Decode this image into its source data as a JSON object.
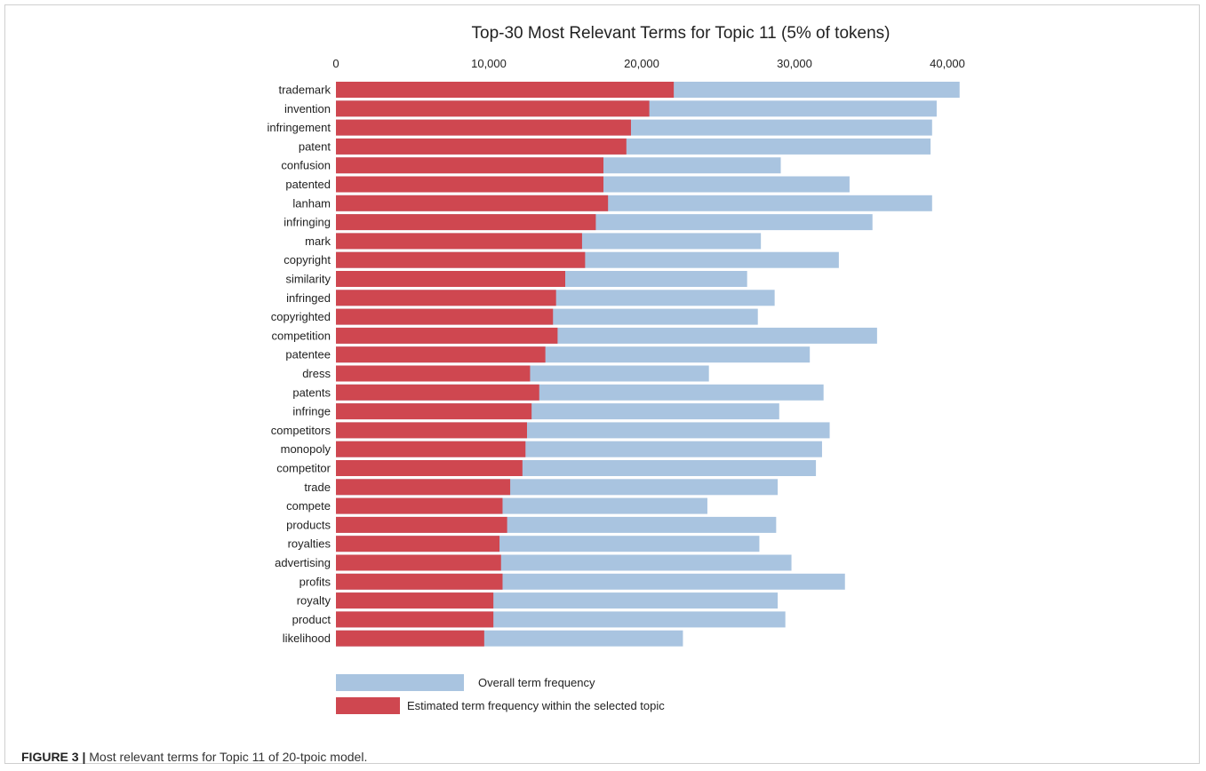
{
  "caption": {
    "label": "FIGURE 3 |",
    "text": " Most relevant terms for Topic 11 of 20-tpoic model."
  },
  "chart_data": {
    "type": "bar",
    "orientation": "horizontal",
    "stacking": "overlay",
    "title": "Top-30 Most Relevant Terms for Topic 11 (5% of tokens)",
    "xlim": [
      0,
      40000
    ],
    "xticks": [
      0,
      10000,
      20000,
      30000,
      40000
    ],
    "xtick_labels": [
      "0",
      "10,000",
      "20,000",
      "30,000",
      "40,000"
    ],
    "x_axis_position": "top",
    "grid": false,
    "legend_position": "bottom-left",
    "categories": [
      "trademark",
      "invention",
      "infringement",
      "patent",
      "confusion",
      "patented",
      "lanham",
      "infringing",
      "mark",
      "copyright",
      "similarity",
      "infringed",
      "copyrighted",
      "competition",
      "patentee",
      "dress",
      "patents",
      "infringe",
      "competitors",
      "monopoly",
      "competitor",
      "trade",
      "compete",
      "products",
      "royalties",
      "advertising",
      "profits",
      "royalty",
      "product",
      "likelihood"
    ],
    "series": [
      {
        "name": "Overall term frequency",
        "color": "#a9c4e0",
        "values": [
          40800,
          39300,
          39000,
          38900,
          29100,
          33600,
          39000,
          35100,
          27800,
          32900,
          26900,
          28700,
          27600,
          35400,
          31000,
          24400,
          31900,
          29000,
          32300,
          31800,
          31400,
          28900,
          24300,
          28800,
          27700,
          29800,
          33300,
          28900,
          29400,
          22700
        ]
      },
      {
        "name": "Estimated term frequency within the selected topic",
        "color": "#cf4750",
        "values": [
          22100,
          20500,
          19300,
          19000,
          17500,
          17500,
          17800,
          17000,
          16100,
          16300,
          15000,
          14400,
          14200,
          14500,
          13700,
          12700,
          13300,
          12800,
          12500,
          12400,
          12200,
          11400,
          10900,
          11200,
          10700,
          10800,
          10900,
          10300,
          10300,
          9700
        ]
      }
    ]
  }
}
